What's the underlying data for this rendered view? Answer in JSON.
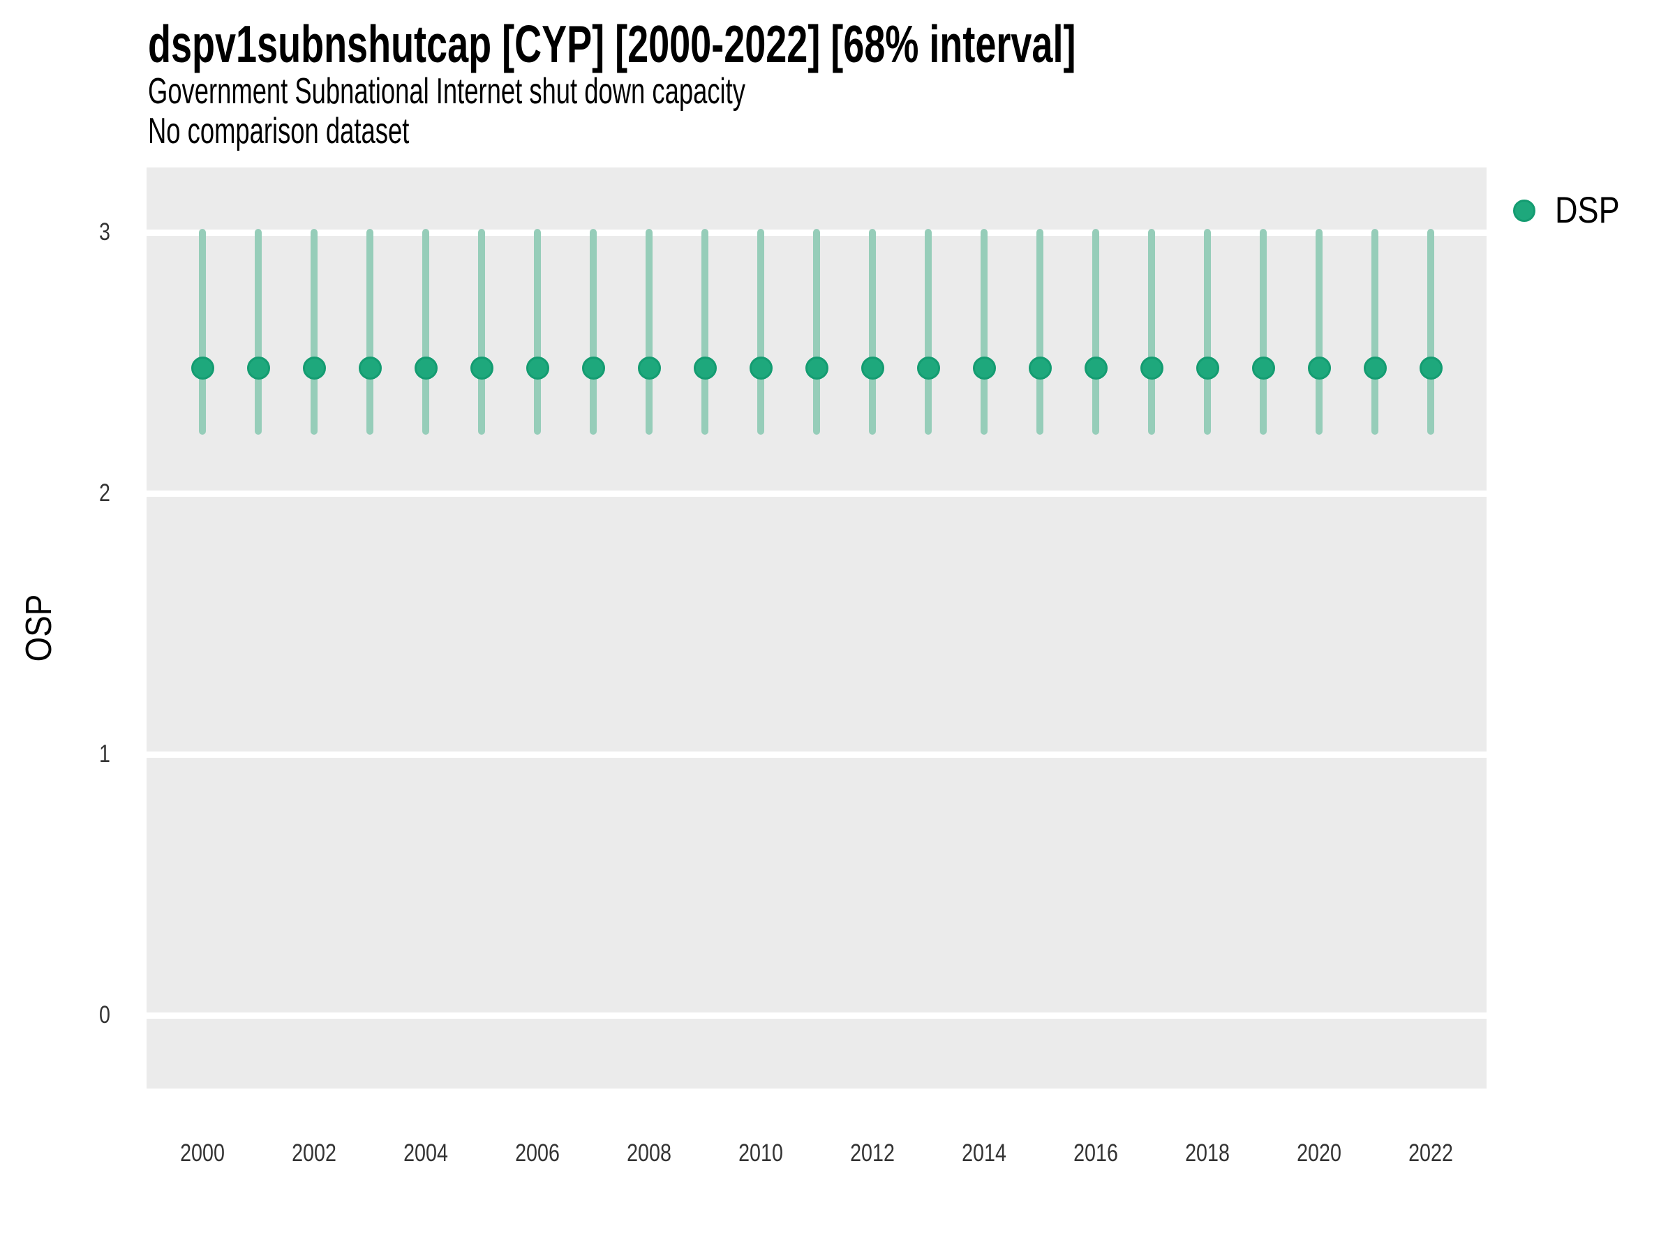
{
  "header": {
    "title": "dspv1subnshutcap [CYP] [2000-2022] [68% interval]",
    "subtitle": "Government Subnational Internet shut down capacity",
    "note": "No comparison dataset"
  },
  "axes": {
    "y_title": "OSP",
    "x_title": ""
  },
  "legend": {
    "label": "DSP",
    "marker": "circle-icon"
  },
  "colors": {
    "point_fill": "#1EA87C",
    "point_ring": "#149C71",
    "interval_line": "#96CDB9",
    "panel_background": "#EBEBEB",
    "gridline": "#FFFFFF",
    "tick_text": "#333333",
    "page_background": "#FFFFFF"
  },
  "chart_data": {
    "type": "pointrange",
    "title": "dspv1subnshutcap [CYP] [2000-2022] [68% interval]",
    "subtitle": "Government Subnational Internet shut down capacity",
    "note": "No comparison dataset",
    "xlabel": "",
    "ylabel": "OSP",
    "legend_position": "right",
    "grid": "horizontal white major gridlines on gray panel, no vertical gridlines",
    "interval_label": "68% interval",
    "country": "CYP",
    "x": [
      2000,
      2001,
      2002,
      2003,
      2004,
      2005,
      2006,
      2007,
      2008,
      2009,
      2010,
      2011,
      2012,
      2013,
      2014,
      2015,
      2016,
      2017,
      2018,
      2019,
      2020,
      2021,
      2022
    ],
    "series": [
      {
        "name": "DSP",
        "median": [
          2.48,
          2.48,
          2.48,
          2.48,
          2.48,
          2.48,
          2.48,
          2.48,
          2.48,
          2.48,
          2.48,
          2.48,
          2.48,
          2.48,
          2.48,
          2.48,
          2.48,
          2.48,
          2.48,
          2.48,
          2.48,
          2.48,
          2.48
        ],
        "lo": [
          2.24,
          2.24,
          2.24,
          2.24,
          2.24,
          2.24,
          2.24,
          2.24,
          2.24,
          2.24,
          2.24,
          2.24,
          2.24,
          2.24,
          2.24,
          2.24,
          2.24,
          2.24,
          2.24,
          2.24,
          2.24,
          2.24,
          2.24
        ],
        "hi": [
          3.0,
          3.0,
          3.0,
          3.0,
          3.0,
          3.0,
          3.0,
          3.0,
          3.0,
          3.0,
          3.0,
          3.0,
          3.0,
          3.0,
          3.0,
          3.0,
          3.0,
          3.0,
          3.0,
          3.0,
          3.0,
          3.0,
          3.0
        ]
      }
    ],
    "xlim": [
      1999,
      2023
    ],
    "ylim": [
      -0.28,
      3.25
    ],
    "yticks": [
      0,
      1,
      2,
      3
    ],
    "xticks": [
      2000,
      2002,
      2004,
      2006,
      2008,
      2010,
      2012,
      2014,
      2016,
      2018,
      2020,
      2022
    ]
  }
}
